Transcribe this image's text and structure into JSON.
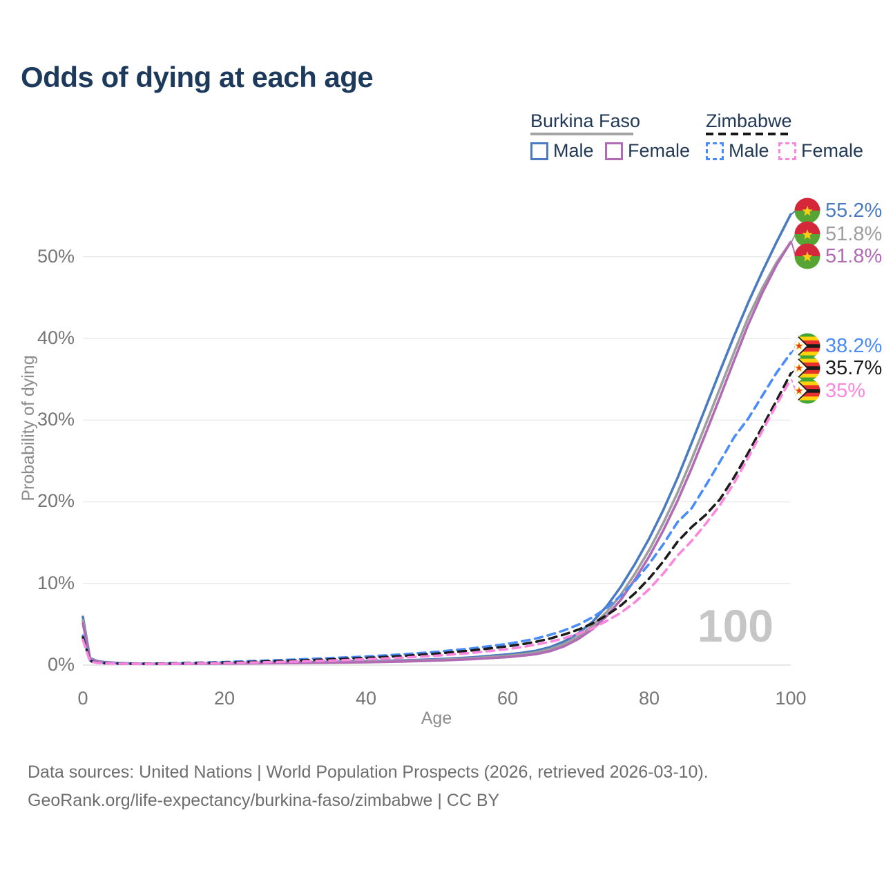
{
  "title": "Odds of dying at each age",
  "watermark_age": "100",
  "legend": {
    "groups": [
      {
        "country": "Burkina Faso",
        "style": "solid",
        "rule_color": "#a3a3a3",
        "items": [
          {
            "label": "Male",
            "color": "#4a7abf"
          },
          {
            "label": "Female",
            "color": "#b16bb5"
          }
        ]
      },
      {
        "country": "Zimbabwe",
        "style": "dashed",
        "rule_color": "#161616",
        "items": [
          {
            "label": "Male",
            "color": "#4a8cf7"
          },
          {
            "label": "Female",
            "color": "#fb86dd"
          }
        ]
      }
    ]
  },
  "axes": {
    "y_title": "Probability of dying",
    "x_title": "Age",
    "y_ticks": [
      "0%",
      "10%",
      "20%",
      "30%",
      "40%",
      "50%"
    ],
    "x_ticks": [
      "0",
      "20",
      "40",
      "60",
      "80",
      "100"
    ]
  },
  "end_labels": [
    {
      "value": "55.2%",
      "color": "#4a7abf",
      "flag": "burkina-faso",
      "series": 0
    },
    {
      "value": "51.8%",
      "color": "#9e9e9e",
      "flag": "burkina-faso",
      "series": 1
    },
    {
      "value": "51.8%",
      "color": "#b16bb5",
      "flag": "burkina-faso",
      "series": 2
    },
    {
      "value": "38.2%",
      "color": "#4a8cf7",
      "flag": "zimbabwe",
      "series": 3
    },
    {
      "value": "35.7%",
      "color": "#1c1c1c",
      "flag": "zimbabwe",
      "series": 4
    },
    {
      "value": "35%",
      "color": "#fb86dd",
      "flag": "zimbabwe",
      "series": 5
    }
  ],
  "source": {
    "line1": "Data sources: United Nations | World Population Prospects (2026, retrieved 2026-03-10).",
    "line2": "GeoRank.org/life-expectancy/burkina-faso/zimbabwe | CC BY"
  },
  "chart_data": {
    "type": "line",
    "title": "Odds of dying at each age",
    "xlabel": "Age",
    "ylabel": "Probability of dying",
    "xlim": [
      0,
      100
    ],
    "ylim_pct": [
      0,
      57
    ],
    "y_gridlines_pct": [
      0,
      10,
      20,
      30,
      40,
      50
    ],
    "legend_position": "top-right",
    "x": [
      0,
      1,
      2,
      3,
      5,
      8,
      10,
      15,
      20,
      25,
      30,
      35,
      40,
      45,
      50,
      55,
      60,
      62,
      64,
      66,
      68,
      70,
      72,
      74,
      76,
      78,
      80,
      82,
      84,
      86,
      88,
      90,
      92,
      94,
      96,
      98,
      100
    ],
    "series": [
      {
        "name": "Burkina Faso Male",
        "color": "#4a7abf",
        "dash": null,
        "end_value_pct": 55.2,
        "values": [
          5.9,
          0.85,
          0.5,
          0.38,
          0.25,
          0.17,
          0.16,
          0.19,
          0.26,
          0.3,
          0.34,
          0.4,
          0.47,
          0.57,
          0.72,
          0.95,
          1.3,
          1.5,
          1.75,
          2.2,
          2.9,
          3.9,
          5.3,
          7.2,
          9.6,
          12.4,
          15.5,
          19.0,
          22.9,
          27.2,
          31.6,
          36.0,
          40.3,
          44.4,
          48.2,
          51.8,
          55.2
        ]
      },
      {
        "name": "Burkina Faso",
        "color": "#9e9e9e",
        "dash": null,
        "end_value_pct": 51.8,
        "values": [
          5.5,
          0.8,
          0.47,
          0.35,
          0.23,
          0.16,
          0.15,
          0.17,
          0.22,
          0.26,
          0.29,
          0.34,
          0.41,
          0.5,
          0.63,
          0.83,
          1.13,
          1.31,
          1.54,
          1.95,
          2.6,
          3.5,
          4.8,
          6.5,
          8.6,
          11.2,
          14.1,
          17.4,
          21.1,
          25.2,
          29.5,
          33.9,
          38.3,
          42.6,
          46.2,
          49.3,
          51.8
        ]
      },
      {
        "name": "Burkina Faso Female",
        "color": "#b16bb5",
        "dash": null,
        "end_value_pct": 51.8,
        "values": [
          5.1,
          0.75,
          0.44,
          0.33,
          0.21,
          0.15,
          0.14,
          0.16,
          0.19,
          0.22,
          0.25,
          0.29,
          0.35,
          0.43,
          0.55,
          0.72,
          0.98,
          1.14,
          1.34,
          1.7,
          2.3,
          3.2,
          4.4,
          6.0,
          8.0,
          10.5,
          13.3,
          16.5,
          20.1,
          24.1,
          28.4,
          32.8,
          37.3,
          41.7,
          45.6,
          49.0,
          51.8
        ]
      },
      {
        "name": "Zimbabwe Male",
        "color": "#4a8cf7",
        "dash": [
          11,
          8
        ],
        "end_value_pct": 38.2,
        "values": [
          3.6,
          0.55,
          0.3,
          0.25,
          0.2,
          0.18,
          0.19,
          0.26,
          0.38,
          0.52,
          0.68,
          0.85,
          1.05,
          1.3,
          1.62,
          2.05,
          2.6,
          2.9,
          3.25,
          3.7,
          4.25,
          4.95,
          5.85,
          7.0,
          8.5,
          10.3,
          12.4,
          14.8,
          17.5,
          19.2,
          22.0,
          24.9,
          27.9,
          30.2,
          33.0,
          35.8,
          38.2
        ]
      },
      {
        "name": "Zimbabwe",
        "color": "#1c1c1c",
        "dash": [
          11,
          8
        ],
        "end_value_pct": 35.7,
        "values": [
          3.4,
          0.5,
          0.28,
          0.23,
          0.18,
          0.16,
          0.17,
          0.22,
          0.31,
          0.42,
          0.55,
          0.7,
          0.88,
          1.1,
          1.4,
          1.8,
          2.3,
          2.55,
          2.85,
          3.25,
          3.75,
          4.35,
          5.1,
          6.1,
          7.3,
          8.8,
          10.6,
          12.7,
          15.1,
          16.9,
          18.4,
          20.3,
          23.0,
          26.0,
          29.2,
          32.4,
          35.7
        ]
      },
      {
        "name": "Zimbabwe Female",
        "color": "#fb86dd",
        "dash": [
          11,
          8
        ],
        "end_value_pct": 35.0,
        "values": [
          3.1,
          0.45,
          0.26,
          0.21,
          0.17,
          0.15,
          0.15,
          0.19,
          0.25,
          0.33,
          0.43,
          0.55,
          0.7,
          0.9,
          1.15,
          1.5,
          1.95,
          2.2,
          2.5,
          2.85,
          3.3,
          3.85,
          4.5,
          5.4,
          6.4,
          7.7,
          9.3,
          11.2,
          13.4,
          15.2,
          17.3,
          19.6,
          22.3,
          25.4,
          28.7,
          31.9,
          35.0
        ]
      }
    ]
  }
}
